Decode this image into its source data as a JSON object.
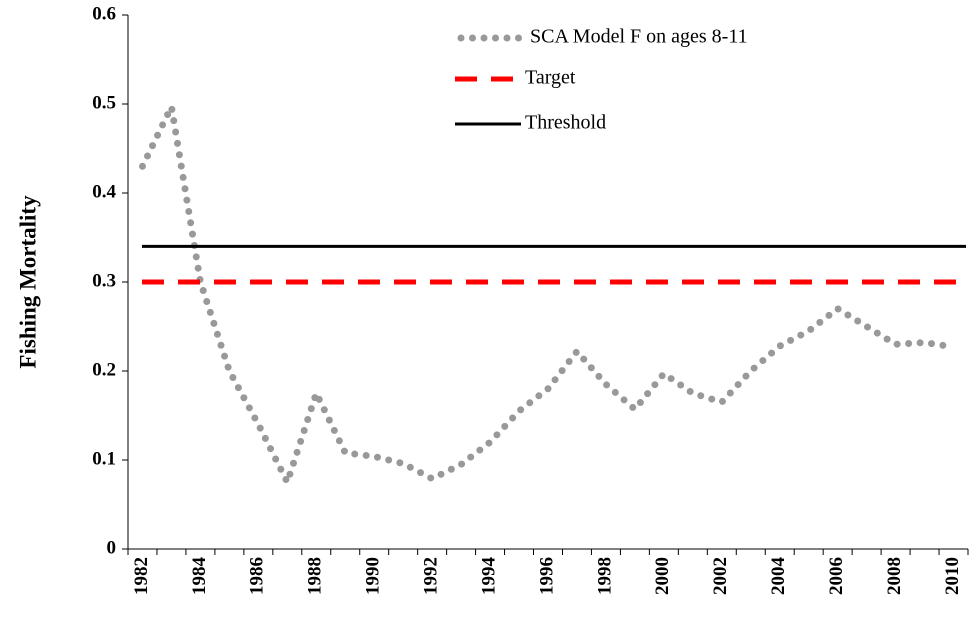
{
  "chart_data": {
    "type": "line",
    "ylabel": "Fishing Mortality",
    "categories": [
      "1982",
      null,
      "1984",
      null,
      "1986",
      null,
      "1988",
      null,
      "1990",
      null,
      "1992",
      null,
      "1994",
      null,
      "1996",
      null,
      "1998",
      null,
      "2000",
      null,
      "2002",
      null,
      "2004",
      null,
      "2006",
      null,
      "2008",
      null,
      "2010"
    ],
    "series": [
      {
        "name": "SCA Model F on ages 8-11",
        "color": "#999999",
        "style": "dotted",
        "values": [
          0.43,
          0.497,
          0.3,
          0.2,
          0.14,
          0.075,
          0.175,
          0.108,
          0.104,
          0.096,
          0.079,
          0.095,
          0.12,
          0.155,
          0.18,
          0.222,
          0.185,
          0.157,
          0.197,
          0.175,
          0.165,
          0.2,
          0.228,
          0.245,
          0.27,
          0.25,
          0.23,
          0.232,
          0.227
        ]
      },
      {
        "name": "Target",
        "color": "#ff0000",
        "style": "dashed",
        "values": [
          0.3,
          0.3,
          0.3,
          0.3,
          0.3,
          0.3,
          0.3,
          0.3,
          0.3,
          0.3,
          0.3,
          0.3,
          0.3,
          0.3,
          0.3,
          0.3,
          0.3,
          0.3,
          0.3,
          0.3,
          0.3,
          0.3,
          0.3,
          0.3,
          0.3,
          0.3,
          0.3,
          0.3,
          0.3
        ]
      },
      {
        "name": "Threshold",
        "color": "#000000",
        "style": "solid",
        "values": [
          0.34,
          0.34,
          0.34,
          0.34,
          0.34,
          0.34,
          0.34,
          0.34,
          0.34,
          0.34,
          0.34,
          0.34,
          0.34,
          0.34,
          0.34,
          0.34,
          0.34,
          0.34,
          0.34,
          0.34,
          0.34,
          0.34,
          0.34,
          0.34,
          0.34,
          0.34,
          0.34,
          0.34,
          0.34
        ]
      }
    ],
    "ylim": [
      0,
      0.6
    ],
    "yticks": [
      0,
      0.1,
      0.2,
      0.3,
      0.4,
      0.5,
      0.6
    ],
    "grid": false,
    "legend": "top-right"
  }
}
